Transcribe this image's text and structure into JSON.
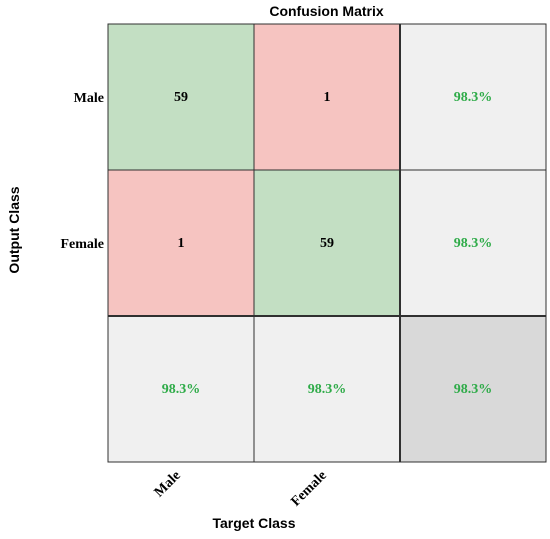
{
  "chart_data": {
    "type": "heatmap",
    "title": "Confusion Matrix",
    "xlabel": "Target Class",
    "ylabel": "Output Class",
    "classes": [
      "Male",
      "Female"
    ],
    "matrix": [
      [
        59,
        1
      ],
      [
        1,
        59
      ]
    ],
    "row_summary": [
      "98.3%",
      "98.3%"
    ],
    "col_summary": [
      "98.3%",
      "98.3%"
    ],
    "overall": "98.3%",
    "colors": {
      "correct": "#c3dfc3",
      "incorrect": "#f6c4c1",
      "summary": "#f0f0f0",
      "overall": "#d9d9d9",
      "percent_text": "#2eab48",
      "count_text": "#000000",
      "grid": "#303030"
    }
  }
}
